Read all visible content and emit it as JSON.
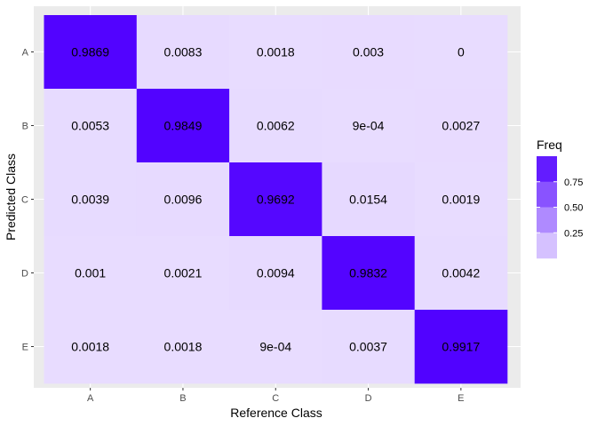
{
  "chart_data": {
    "type": "heatmap",
    "xlabel": "Reference Class",
    "ylabel": "Predicted Class",
    "x_categories": [
      "A",
      "B",
      "C",
      "D",
      "E"
    ],
    "y_categories": [
      "A",
      "B",
      "C",
      "D",
      "E"
    ],
    "cells": [
      {
        "x": "A",
        "y": "A",
        "value": 0.9869,
        "label": "0.9869"
      },
      {
        "x": "B",
        "y": "A",
        "value": 0.0083,
        "label": "0.0083"
      },
      {
        "x": "C",
        "y": "A",
        "value": 0.0018,
        "label": "0.0018"
      },
      {
        "x": "D",
        "y": "A",
        "value": 0.003,
        "label": "0.003"
      },
      {
        "x": "E",
        "y": "A",
        "value": 0,
        "label": "0"
      },
      {
        "x": "A",
        "y": "B",
        "value": 0.0053,
        "label": "0.0053"
      },
      {
        "x": "B",
        "y": "B",
        "value": 0.9849,
        "label": "0.9849"
      },
      {
        "x": "C",
        "y": "B",
        "value": 0.0062,
        "label": "0.0062"
      },
      {
        "x": "D",
        "y": "B",
        "value": 0.0009,
        "label": "9e-04"
      },
      {
        "x": "E",
        "y": "B",
        "value": 0.0027,
        "label": "0.0027"
      },
      {
        "x": "A",
        "y": "C",
        "value": 0.0039,
        "label": "0.0039"
      },
      {
        "x": "B",
        "y": "C",
        "value": 0.0096,
        "label": "0.0096"
      },
      {
        "x": "C",
        "y": "C",
        "value": 0.9692,
        "label": "0.9692"
      },
      {
        "x": "D",
        "y": "C",
        "value": 0.0154,
        "label": "0.0154"
      },
      {
        "x": "E",
        "y": "C",
        "value": 0.0019,
        "label": "0.0019"
      },
      {
        "x": "A",
        "y": "D",
        "value": 0.001,
        "label": "0.001"
      },
      {
        "x": "B",
        "y": "D",
        "value": 0.0021,
        "label": "0.0021"
      },
      {
        "x": "C",
        "y": "D",
        "value": 0.0094,
        "label": "0.0094"
      },
      {
        "x": "D",
        "y": "D",
        "value": 0.9832,
        "label": "0.9832"
      },
      {
        "x": "E",
        "y": "D",
        "value": 0.0042,
        "label": "0.0042"
      },
      {
        "x": "A",
        "y": "E",
        "value": 0.0018,
        "label": "0.0018"
      },
      {
        "x": "B",
        "y": "E",
        "value": 0.0018,
        "label": "0.0018"
      },
      {
        "x": "C",
        "y": "E",
        "value": 0.0009,
        "label": "9e-04"
      },
      {
        "x": "D",
        "y": "E",
        "value": 0.0037,
        "label": "0.0037"
      },
      {
        "x": "E",
        "y": "E",
        "value": 0.9917,
        "label": "0.9917"
      }
    ],
    "legend": {
      "title": "Freq",
      "position": "right",
      "breaks": [
        0.75,
        0.5,
        0.25
      ],
      "break_labels": [
        "0.75",
        "0.50",
        "0.25"
      ],
      "low_color": "#e8dcff",
      "high_color": "#5000ff"
    },
    "panel_background": "#ebebeb",
    "grid": true
  }
}
